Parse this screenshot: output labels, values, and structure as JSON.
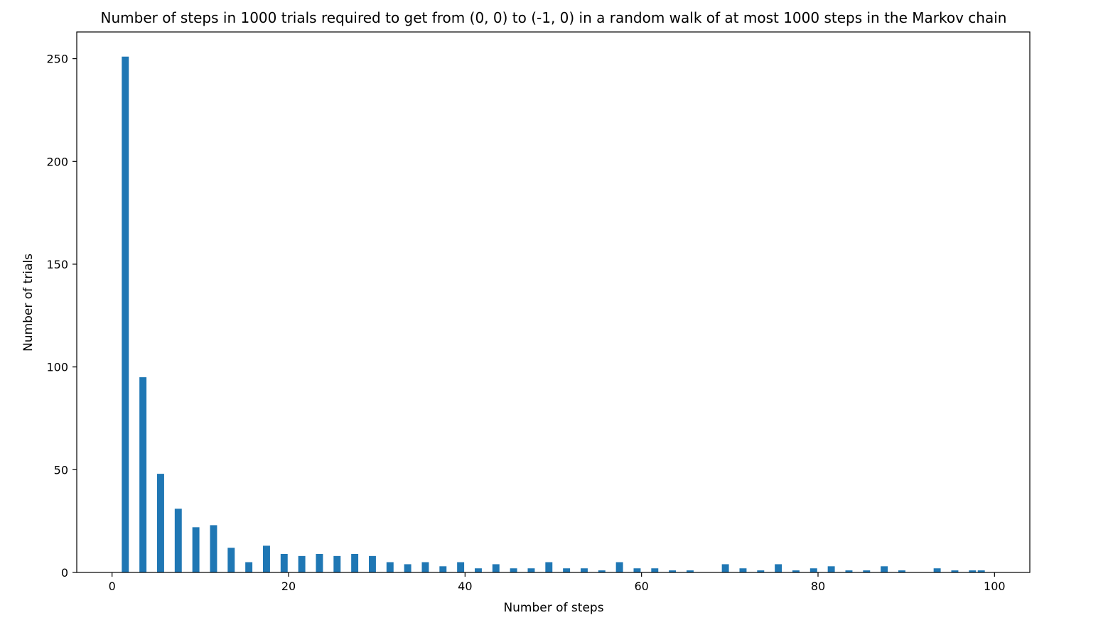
{
  "chart_data": {
    "type": "bar",
    "title": "Number of steps in 1000 trials required to get from (0, 0) to (-1, 0) in a random walk of at most 1000 steps in the Markov chain",
    "xlabel": "Number of steps",
    "ylabel": "Number of trials",
    "xlim": [
      -4,
      104
    ],
    "ylim": [
      0,
      263
    ],
    "xticks": [
      0,
      20,
      40,
      60,
      80,
      100
    ],
    "yticks": [
      0,
      50,
      100,
      150,
      200,
      250
    ],
    "bar_width": 0.8,
    "bar_color": "#1f77b4",
    "grid": false,
    "x": [
      1.5,
      3.5,
      5.5,
      7.5,
      9.5,
      11.5,
      13.5,
      15.5,
      17.5,
      19.5,
      21.5,
      23.5,
      25.5,
      27.5,
      29.5,
      31.5,
      33.5,
      35.5,
      37.5,
      39.5,
      41.5,
      43.5,
      45.5,
      47.5,
      49.5,
      51.5,
      53.5,
      55.5,
      57.5,
      59.5,
      61.5,
      63.5,
      65.5,
      69.5,
      71.5,
      73.5,
      75.5,
      77.5,
      79.5,
      81.5,
      83.5,
      85.5,
      87.5,
      89.5,
      93.5,
      95.5,
      97.5,
      98.5
    ],
    "values": [
      251,
      95,
      48,
      31,
      22,
      23,
      12,
      5,
      13,
      9,
      8,
      9,
      8,
      9,
      8,
      5,
      4,
      5,
      3,
      5,
      2,
      4,
      2,
      2,
      5,
      2,
      2,
      1,
      5,
      2,
      2,
      1,
      1,
      4,
      2,
      1,
      4,
      1,
      2,
      3,
      1,
      1,
      3,
      1,
      2,
      1,
      1,
      1
    ]
  }
}
